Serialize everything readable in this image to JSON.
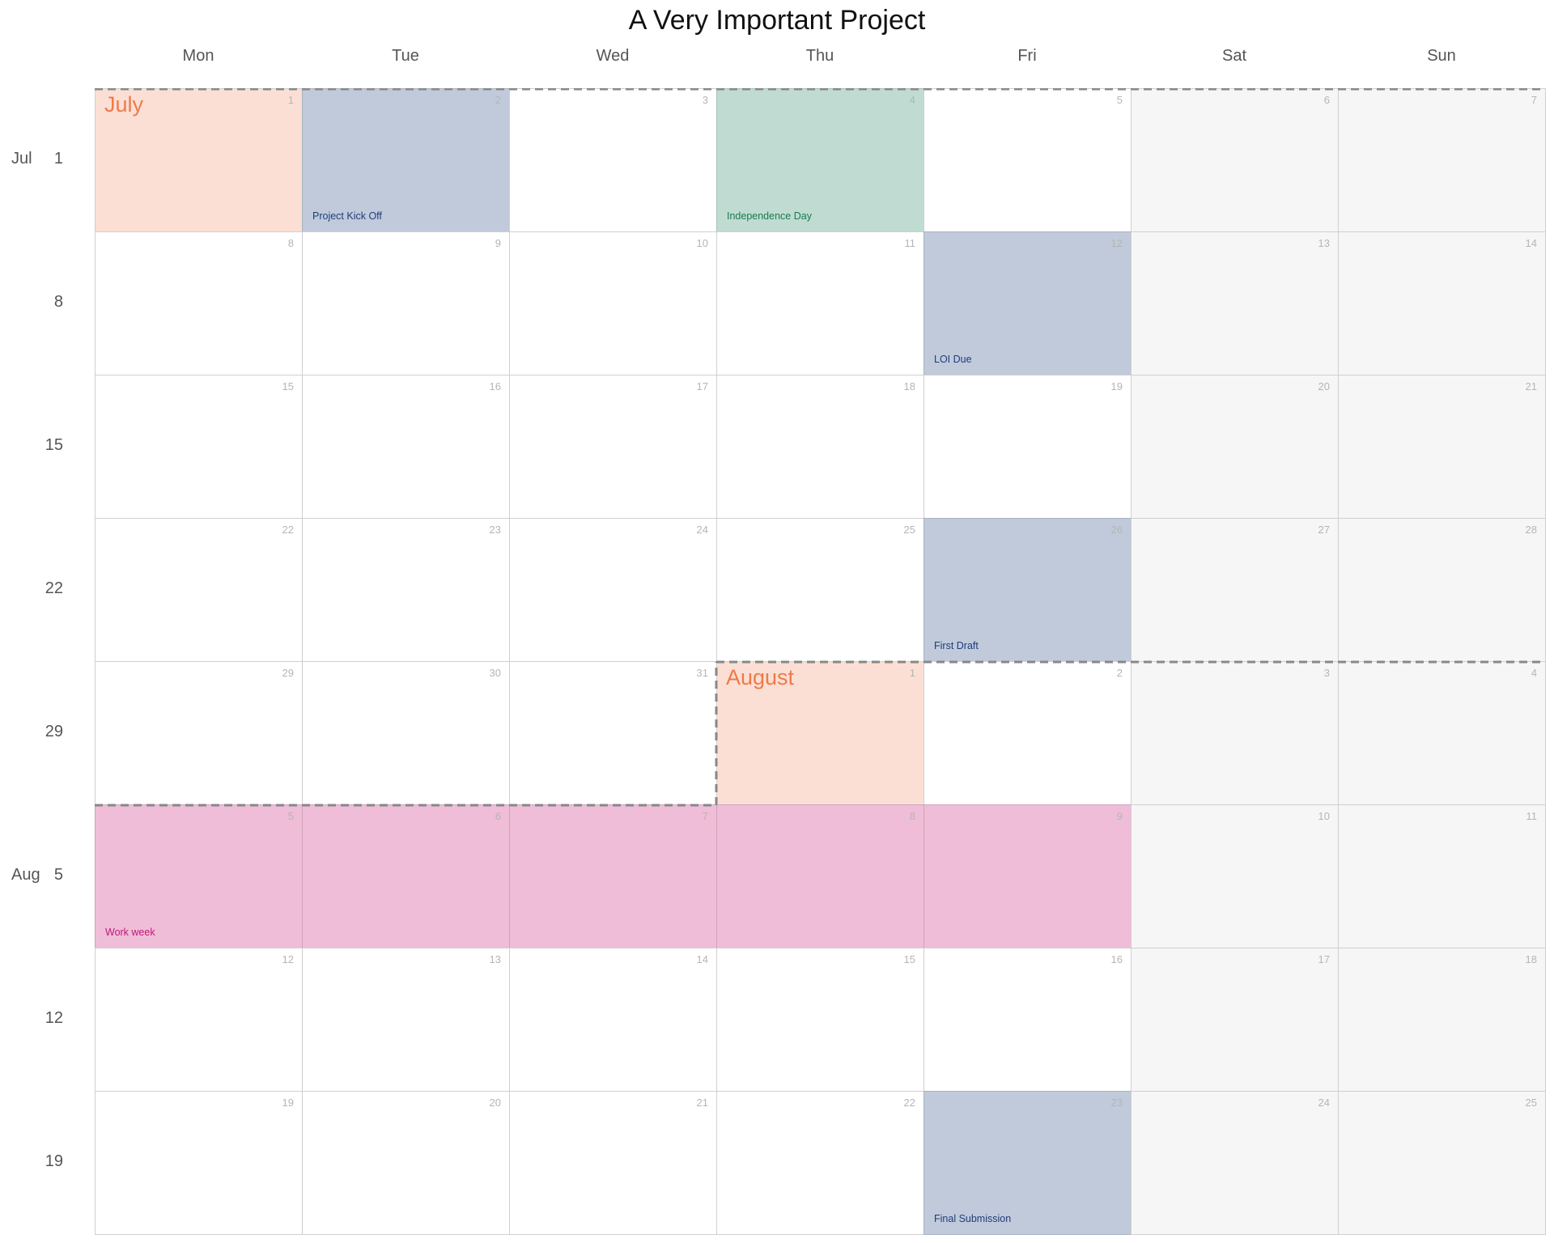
{
  "title": "A Very Important Project",
  "weekdays": [
    "Mon",
    "Tue",
    "Wed",
    "Thu",
    "Fri",
    "Sat",
    "Sun"
  ],
  "rows": [
    {
      "month_label": "Jul",
      "label": "1",
      "days": [
        "1",
        "2",
        "3",
        "4",
        "5",
        "6",
        "7"
      ]
    },
    {
      "month_label": "",
      "label": "8",
      "days": [
        "8",
        "9",
        "10",
        "11",
        "12",
        "13",
        "14"
      ]
    },
    {
      "month_label": "",
      "label": "15",
      "days": [
        "15",
        "16",
        "17",
        "18",
        "19",
        "20",
        "21"
      ]
    },
    {
      "month_label": "",
      "label": "22",
      "days": [
        "22",
        "23",
        "24",
        "25",
        "26",
        "27",
        "28"
      ]
    },
    {
      "month_label": "",
      "label": "29",
      "days": [
        "29",
        "30",
        "31",
        "1",
        "2",
        "3",
        "4"
      ]
    },
    {
      "month_label": "Aug",
      "label": "5",
      "days": [
        "5",
        "6",
        "7",
        "8",
        "9",
        "10",
        "11"
      ]
    },
    {
      "month_label": "",
      "label": "12",
      "days": [
        "12",
        "13",
        "14",
        "15",
        "16",
        "17",
        "18"
      ]
    },
    {
      "month_label": "",
      "label": "19",
      "days": [
        "19",
        "20",
        "21",
        "22",
        "23",
        "24",
        "25"
      ]
    }
  ],
  "month_starts": [
    {
      "name": "July",
      "row": 0,
      "col": 0
    },
    {
      "name": "August",
      "row": 4,
      "col": 3
    }
  ],
  "events": [
    {
      "label": "Project Kick Off",
      "row": 0,
      "col": 1,
      "kind": "milestone"
    },
    {
      "label": "Independence Day",
      "row": 0,
      "col": 3,
      "kind": "holiday"
    },
    {
      "label": "LOI Due",
      "row": 1,
      "col": 4,
      "kind": "milestone"
    },
    {
      "label": "First Draft",
      "row": 3,
      "col": 4,
      "kind": "milestone"
    },
    {
      "label": "Final Submission",
      "row": 7,
      "col": 4,
      "kind": "milestone"
    },
    {
      "label": "Work week",
      "row": 5,
      "col": 0,
      "kind": "workweek",
      "span": 5
    }
  ],
  "colors": {
    "month_label": "#ee7a4a",
    "month_start_fill": "#fcdfd4",
    "milestone_fill": "#c0cadb",
    "milestone_text": "#1f3d7a",
    "holiday_fill": "#c0dcd2",
    "holiday_text": "#1a7a50",
    "workweek_fill": "#efbdd7",
    "workweek_text": "#c2187a",
    "weekend_fill": "#f6f6f6",
    "boundary": "#888888"
  }
}
